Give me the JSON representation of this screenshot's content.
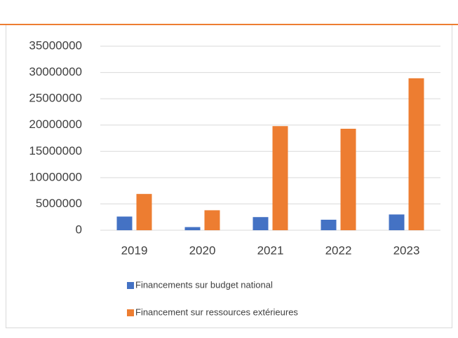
{
  "chart_data": {
    "type": "bar",
    "categories": [
      "2019",
      "2020",
      "2021",
      "2022",
      "2023"
    ],
    "series": [
      {
        "name": "Financements sur budget national",
        "color": "#4472c4",
        "values": [
          2600000,
          600000,
          2500000,
          2000000,
          3000000
        ]
      },
      {
        "name": "Financement sur ressources extérieures",
        "color": "#ed7d31",
        "values": [
          6900000,
          3800000,
          19800000,
          19300000,
          28900000
        ]
      }
    ],
    "ylim": [
      0,
      35000000
    ],
    "yticks": [
      0,
      5000000,
      10000000,
      15000000,
      20000000,
      25000000,
      30000000,
      35000000
    ],
    "grid": true,
    "legend": "bottom"
  }
}
